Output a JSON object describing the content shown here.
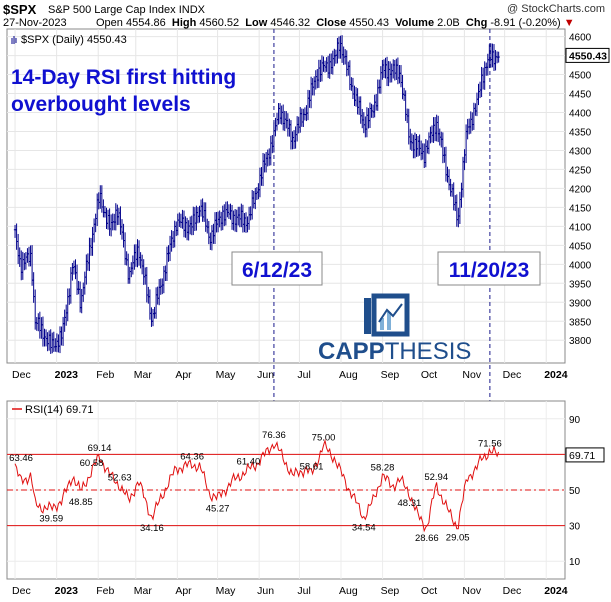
{
  "header": {
    "ticker": "$SPX",
    "name": "S&P 500 Large Cap Index",
    "exchange": "INDX",
    "copyright": "@ StockCharts.com",
    "date": "27-Nov-2023",
    "open_label": "Open",
    "open": "4554.86",
    "high_label": "High",
    "high": "4560.52",
    "low_label": "Low",
    "low": "4546.32",
    "close_label": "Close",
    "close": "4550.43",
    "volume_label": "Volume",
    "volume": "2.0B",
    "chg_label": "Chg",
    "chg": "-8.91 (-0.20%)",
    "chg_arrow": "▼"
  },
  "annotations": {
    "headline_line1": "14-Day RSI first hitting",
    "headline_line2": "overbought levels",
    "date_label_1": "6/12/23",
    "date_label_2": "11/20/23",
    "logo_text_1": "CAPP",
    "logo_text_2": "THESIS"
  },
  "colors": {
    "headline": "#1010d0",
    "price_bars": "#00008b",
    "rsi_line": "#e01010",
    "overbought_line": "#e01010",
    "guide_lines": "#1a1a8c",
    "logo_blue": "#1f4e8c"
  },
  "chart_data": [
    {
      "type": "ohlc",
      "title": "$SPX (Daily) 4550.43",
      "legend_label": "$SPX (Daily)",
      "legend_value": "4550.43",
      "last_value_tag": "4550.43",
      "ylim": [
        3740,
        4620
      ],
      "yticks": [
        3800,
        3850,
        3900,
        3950,
        4000,
        4050,
        4100,
        4150,
        4200,
        4250,
        4300,
        4350,
        4400,
        4450,
        4500,
        4550,
        4600
      ],
      "x_month_labels": [
        "Dec",
        "2023",
        "Feb",
        "Mar",
        "Apr",
        "May",
        "Jun",
        "Jul",
        "Aug",
        "Sep",
        "Oct",
        "Nov",
        "Dec",
        "2024"
      ],
      "vertical_markers": [
        "2023-06-12",
        "2023-11-20"
      ],
      "approx_closes": [
        [
          "2022-12-01",
          4076
        ],
        [
          "2022-12-05",
          4000
        ],
        [
          "2022-12-13",
          4020
        ],
        [
          "2022-12-16",
          3850
        ],
        [
          "2022-12-22",
          3820
        ],
        [
          "2022-12-28",
          3783
        ],
        [
          "2023-01-05",
          3810
        ],
        [
          "2023-01-13",
          3999
        ],
        [
          "2023-01-19",
          3900
        ],
        [
          "2023-01-27",
          4070
        ],
        [
          "2023-02-02",
          4180
        ],
        [
          "2023-02-10",
          4090
        ],
        [
          "2023-02-15",
          4150
        ],
        [
          "2023-02-24",
          3970
        ],
        [
          "2023-03-03",
          4045
        ],
        [
          "2023-03-13",
          3855
        ],
        [
          "2023-03-20",
          3950
        ],
        [
          "2023-03-31",
          4109
        ],
        [
          "2023-04-12",
          4100
        ],
        [
          "2023-04-18",
          4155
        ],
        [
          "2023-04-25",
          4070
        ],
        [
          "2023-05-05",
          4136
        ],
        [
          "2023-05-12",
          4125
        ],
        [
          "2023-05-24",
          4115
        ],
        [
          "2023-06-01",
          4220
        ],
        [
          "2023-06-12",
          4338
        ],
        [
          "2023-06-16",
          4410
        ],
        [
          "2023-06-26",
          4330
        ],
        [
          "2023-07-06",
          4410
        ],
        [
          "2023-07-14",
          4505
        ],
        [
          "2023-07-27",
          4537
        ],
        [
          "2023-07-31",
          4589
        ],
        [
          "2023-08-09",
          4467
        ],
        [
          "2023-08-18",
          4370
        ],
        [
          "2023-08-25",
          4405
        ],
        [
          "2023-09-01",
          4515
        ],
        [
          "2023-09-14",
          4505
        ],
        [
          "2023-09-21",
          4330
        ],
        [
          "2023-10-02",
          4290
        ],
        [
          "2023-10-11",
          4376
        ],
        [
          "2023-10-20",
          4224
        ],
        [
          "2023-10-27",
          4117
        ],
        [
          "2023-11-03",
          4358
        ],
        [
          "2023-11-10",
          4415
        ],
        [
          "2023-11-14",
          4495
        ],
        [
          "2023-11-20",
          4547
        ],
        [
          "2023-11-27",
          4550
        ]
      ]
    },
    {
      "type": "line",
      "title": "RSI(14) 69.71",
      "legend_label": "RSI(14)",
      "legend_value": "69.71",
      "last_value_tag": "69.71",
      "ylim": [
        0,
        100
      ],
      "yticks": [
        10,
        30,
        50,
        70,
        90
      ],
      "reference_lines": {
        "overbought": 70,
        "midline": 50,
        "oversold": 30
      },
      "x_month_labels": [
        "Dec",
        "2023",
        "Feb",
        "Mar",
        "Apr",
        "May",
        "Jun",
        "Jul",
        "Aug",
        "Sep",
        "Oct",
        "Nov",
        "Dec",
        "2024"
      ],
      "labeled_points": [
        {
          "date": "2022-12-01",
          "value": 63.46,
          "label": "63.46"
        },
        {
          "date": "2022-12-28",
          "value": 39.59,
          "label": "39.59"
        },
        {
          "date": "2023-01-19",
          "value": 48.85,
          "label": "48.85"
        },
        {
          "date": "2023-01-27",
          "value": 60.58,
          "label": "60.58"
        },
        {
          "date": "2023-02-02",
          "value": 69.14,
          "label": "69.14"
        },
        {
          "date": "2023-02-17",
          "value": 52.63,
          "label": "52.63"
        },
        {
          "date": "2023-03-13",
          "value": 34.16,
          "label": "34.16"
        },
        {
          "date": "2023-04-12",
          "value": 64.36,
          "label": "64.36"
        },
        {
          "date": "2023-05-01",
          "value": 45.27,
          "label": "45.27"
        },
        {
          "date": "2023-05-24",
          "value": 61.4,
          "label": "61.40"
        },
        {
          "date": "2023-06-12",
          "value": 76.36,
          "label": "76.36"
        },
        {
          "date": "2023-07-10",
          "value": 58.61,
          "label": "58.61"
        },
        {
          "date": "2023-07-19",
          "value": 75.0,
          "label": "75.00"
        },
        {
          "date": "2023-08-18",
          "value": 34.54,
          "label": "34.54"
        },
        {
          "date": "2023-09-01",
          "value": 58.28,
          "label": "58.28"
        },
        {
          "date": "2023-09-21",
          "value": 48.31,
          "label": "48.31"
        },
        {
          "date": "2023-10-11",
          "value": 52.94,
          "label": "52.94"
        },
        {
          "date": "2023-10-04",
          "value": 28.66,
          "label": "28.66"
        },
        {
          "date": "2023-10-27",
          "value": 29.05,
          "label": "29.05"
        },
        {
          "date": "2023-11-20",
          "value": 71.56,
          "label": "71.56"
        }
      ],
      "approx_values": [
        [
          "2022-12-01",
          63.5
        ],
        [
          "2022-12-05",
          55
        ],
        [
          "2022-12-13",
          58
        ],
        [
          "2022-12-16",
          42
        ],
        [
          "2022-12-22",
          40
        ],
        [
          "2022-12-28",
          39.6
        ],
        [
          "2023-01-05",
          44
        ],
        [
          "2023-01-13",
          58
        ],
        [
          "2023-01-19",
          48.9
        ],
        [
          "2023-01-27",
          60.6
        ],
        [
          "2023-02-02",
          69.1
        ],
        [
          "2023-02-10",
          58
        ],
        [
          "2023-02-17",
          52.6
        ],
        [
          "2023-02-24",
          44
        ],
        [
          "2023-03-03",
          55
        ],
        [
          "2023-03-13",
          34.2
        ],
        [
          "2023-03-20",
          46
        ],
        [
          "2023-03-31",
          62
        ],
        [
          "2023-04-12",
          64.4
        ],
        [
          "2023-04-18",
          63
        ],
        [
          "2023-04-25",
          48
        ],
        [
          "2023-05-01",
          45.3
        ],
        [
          "2023-05-12",
          55
        ],
        [
          "2023-05-24",
          61.4
        ],
        [
          "2023-06-01",
          66
        ],
        [
          "2023-06-12",
          76.4
        ],
        [
          "2023-06-16",
          72
        ],
        [
          "2023-06-26",
          58
        ],
        [
          "2023-07-06",
          62
        ],
        [
          "2023-07-10",
          58.6
        ],
        [
          "2023-07-19",
          75
        ],
        [
          "2023-07-27",
          68
        ],
        [
          "2023-08-04",
          55
        ],
        [
          "2023-08-09",
          48
        ],
        [
          "2023-08-18",
          34.5
        ],
        [
          "2023-08-25",
          44
        ],
        [
          "2023-09-01",
          58.3
        ],
        [
          "2023-09-08",
          52
        ],
        [
          "2023-09-14",
          56
        ],
        [
          "2023-09-21",
          48.3
        ],
        [
          "2023-09-27",
          36
        ],
        [
          "2023-10-04",
          28.7
        ],
        [
          "2023-10-11",
          52.9
        ],
        [
          "2023-10-20",
          38
        ],
        [
          "2023-10-27",
          29.1
        ],
        [
          "2023-11-03",
          57
        ],
        [
          "2023-11-10",
          62
        ],
        [
          "2023-11-14",
          68
        ],
        [
          "2023-11-20",
          71.6
        ],
        [
          "2023-11-27",
          69.7
        ]
      ]
    }
  ]
}
